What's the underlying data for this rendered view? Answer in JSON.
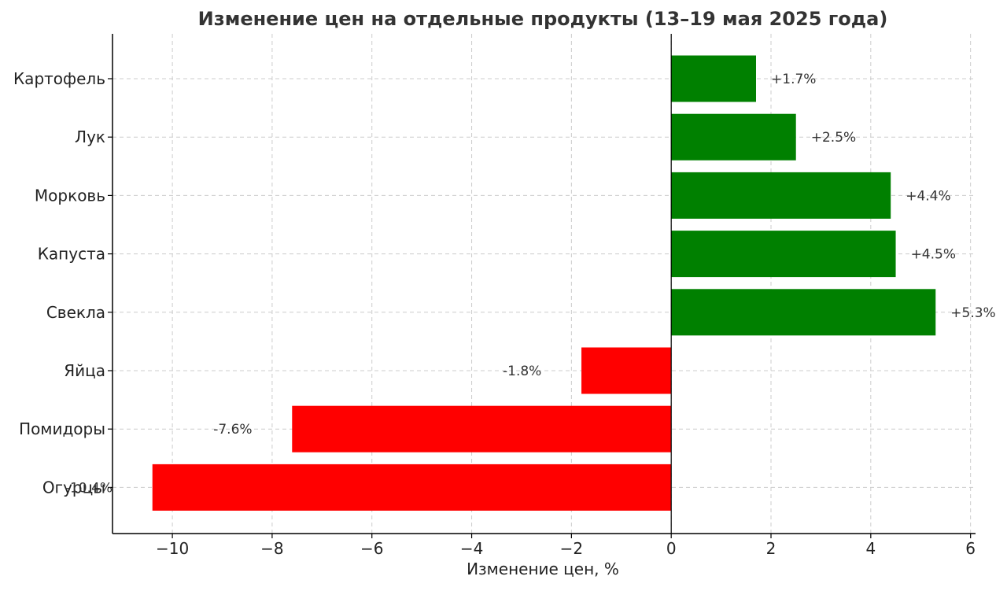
{
  "chart_data": {
    "type": "bar",
    "orientation": "horizontal",
    "title": "Изменение цен на отдельные продукты (13–19 мая 2025 года)",
    "xlabel": "Изменение цен, %",
    "ylabel": "",
    "xlim": [
      -11.2,
      6.1
    ],
    "xticks": [
      -10,
      -8,
      -6,
      -4,
      -2,
      0,
      2,
      4,
      6
    ],
    "xtick_labels": [
      "−10",
      "−8",
      "−6",
      "−4",
      "−2",
      "0",
      "2",
      "4",
      "6"
    ],
    "grid": true,
    "categories": [
      "Картофель",
      "Лук",
      "Морковь",
      "Капуста",
      "Свекла",
      "Яйца",
      "Помидоры",
      "Огурцы"
    ],
    "values": [
      1.7,
      2.5,
      4.4,
      4.5,
      5.3,
      -1.8,
      -7.6,
      -10.4
    ],
    "value_labels": [
      "+1.7%",
      "+2.5%",
      "+4.4%",
      "+4.5%",
      "+5.3%",
      "-1.8%",
      "-7.6%",
      "-10.4%"
    ],
    "colors": {
      "positive": "#008000",
      "negative": "#ff0000"
    }
  }
}
